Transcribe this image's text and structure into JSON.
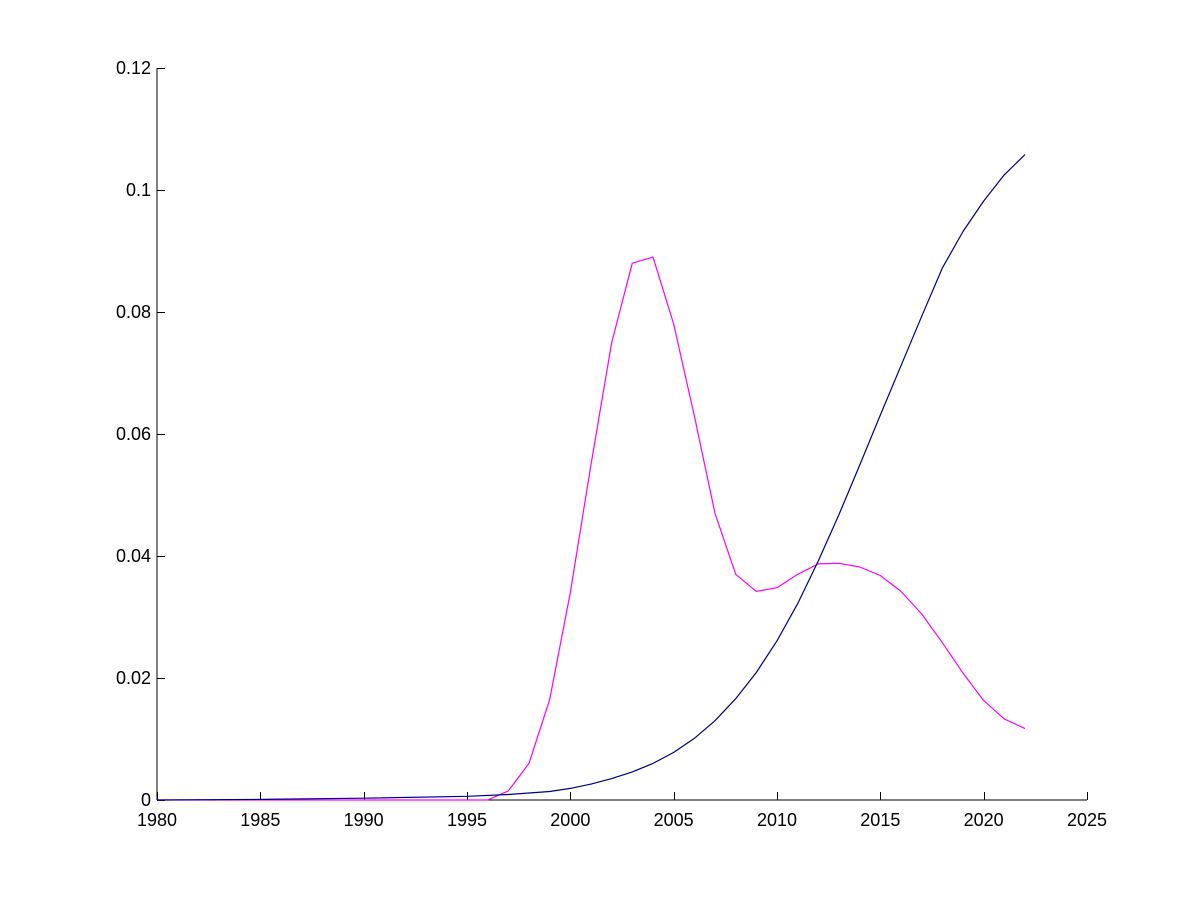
{
  "chart_data": {
    "type": "line",
    "title": "",
    "xlabel": "",
    "ylabel": "",
    "xlim": [
      1980,
      2025
    ],
    "ylim": [
      0,
      0.12
    ],
    "xticks": [
      1980,
      1985,
      1990,
      1995,
      2000,
      2005,
      2010,
      2015,
      2020,
      2025
    ],
    "yticks": [
      0,
      0.02,
      0.04,
      0.06,
      0.08,
      0.1,
      0.12
    ],
    "ytick_labels": [
      "0",
      "0.02",
      "0.04",
      "0.06",
      "0.08",
      "0.1",
      "0.12"
    ],
    "grid": false,
    "legend": "none",
    "series": [
      {
        "color": "#ff00ff",
        "x": [
          1980,
          1985,
          1990,
          1995,
          1996,
          1997,
          1998,
          1999,
          2000,
          2001,
          2002,
          2003,
          2004,
          2005,
          2006,
          2007,
          2008,
          2009,
          2010,
          2011,
          2012,
          2013,
          2014,
          2015,
          2016,
          2017,
          2018,
          2019,
          2020,
          2021,
          2022
        ],
        "y": [
          0,
          0,
          0,
          0,
          0,
          0.0015,
          0.006,
          0.0165,
          0.034,
          0.055,
          0.075,
          0.088,
          0.089,
          0.078,
          0.063,
          0.047,
          0.037,
          0.0342,
          0.0348,
          0.037,
          0.0387,
          0.0388,
          0.0382,
          0.0368,
          0.0342,
          0.0305,
          0.0258,
          0.0208,
          0.0163,
          0.0133,
          0.0117
        ]
      },
      {
        "color": "#00008b",
        "x": [
          1980,
          1985,
          1990,
          1995,
          1997,
          1999,
          2000,
          2001,
          2002,
          2003,
          2004,
          2005,
          2006,
          2007,
          2008,
          2009,
          2010,
          2011,
          2012,
          2013,
          2014,
          2015,
          2016,
          2017,
          2018,
          2019,
          2020,
          2021,
          2022
        ],
        "y": [
          0,
          0.0001,
          0.0003,
          0.0006,
          0.0009,
          0.0014,
          0.0019,
          0.0026,
          0.0035,
          0.0046,
          0.006,
          0.0078,
          0.0101,
          0.013,
          0.0166,
          0.0209,
          0.0261,
          0.0322,
          0.0392,
          0.0468,
          0.0549,
          0.0631,
          0.0712,
          0.0793,
          0.0872,
          0.0932,
          0.0982,
          0.1025,
          0.1058
        ]
      }
    ]
  }
}
